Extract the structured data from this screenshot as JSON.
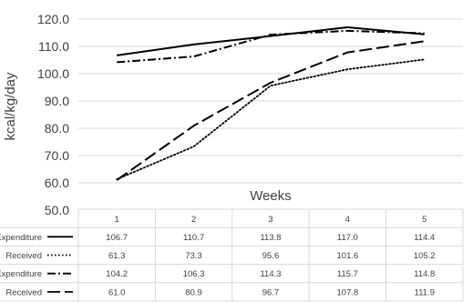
{
  "chart_data": {
    "type": "line",
    "ylabel": "kcal/kg/day",
    "xlabel": "Weeks",
    "ylim": [
      60.0,
      120.0
    ],
    "yticks": [
      "120.0",
      "110.0",
      "100.0",
      "90.0",
      "80.0",
      "70.0",
      "60.0",
      "50.0"
    ],
    "categories": [
      "1",
      "2",
      "3",
      "4",
      "5"
    ],
    "grid": true,
    "series": [
      {
        "name": "Expenditure",
        "color": "#000000",
        "dash": "solid",
        "values": [
          106.7,
          110.7,
          113.8,
          117.0,
          114.4
        ],
        "labels": [
          "106.7",
          "110.7",
          "113.8",
          "117.0",
          "114.4"
        ]
      },
      {
        "name": "Received",
        "color": "#000000",
        "dash": "dotted",
        "values": [
          61.3,
          73.3,
          95.6,
          101.6,
          105.2
        ],
        "labels": [
          "61.3",
          "73.3",
          "95.6",
          "101.6",
          "105.2"
        ]
      },
      {
        "name": "Expenditure",
        "color": "#000000",
        "dash": "dashdot",
        "values": [
          104.2,
          106.3,
          114.3,
          115.7,
          114.8
        ],
        "labels": [
          "104.2",
          "106.3",
          "114.3",
          "115.7",
          "114.8"
        ]
      },
      {
        "name": "Received",
        "color": "#000000",
        "dash": "longdash",
        "values": [
          61.0,
          80.9,
          96.7,
          107.8,
          111.9
        ],
        "labels": [
          "61.0",
          "80.9",
          "96.7",
          "107.8",
          "111.9"
        ]
      }
    ]
  }
}
